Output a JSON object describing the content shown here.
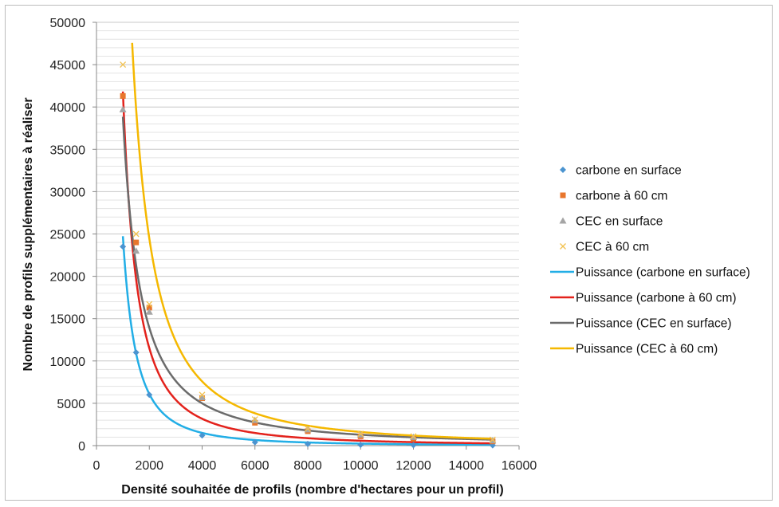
{
  "chart_data": {
    "type": "scatter",
    "title": "",
    "xlabel": "Densité souhaitée de profils (nombre d'hectares pour un profil)",
    "ylabel": "Nombre de profils supplémentaires à réaliser",
    "xlim": [
      0,
      16000
    ],
    "ylim": [
      0,
      50000
    ],
    "x_ticks": [
      "0",
      "2000",
      "4000",
      "6000",
      "8000",
      "10000",
      "12000",
      "14000",
      "16000"
    ],
    "y_ticks": [
      "0",
      "5000",
      "10000",
      "15000",
      "20000",
      "25000",
      "30000",
      "35000",
      "40000",
      "45000",
      "50000"
    ],
    "grid": "horizontal major and minor",
    "legend_position": "right",
    "series": [
      {
        "name": "carbone en surface",
        "marker": "diamond",
        "color": "#4b94d0",
        "x": [
          1000,
          1500,
          2000,
          4000,
          6000,
          8000,
          10000,
          12000,
          15000
        ],
        "y": [
          23500,
          11000,
          6000,
          1200,
          400,
          200,
          100,
          60,
          40
        ]
      },
      {
        "name": "carbone à 60 cm",
        "marker": "square",
        "color": "#e8762c",
        "x": [
          1000,
          1500,
          2000,
          4000,
          6000,
          8000,
          10000,
          12000,
          15000
        ],
        "y": [
          41300,
          24000,
          16300,
          5600,
          2700,
          1700,
          1100,
          800,
          500
        ]
      },
      {
        "name": "CEC en surface",
        "marker": "triangle",
        "color": "#a5a5a5",
        "x": [
          1000,
          1500,
          2000,
          4000,
          6000,
          8000,
          10000,
          12000,
          15000
        ],
        "y": [
          39700,
          23000,
          15800,
          5700,
          3000,
          1900,
          1300,
          1000,
          600
        ]
      },
      {
        "name": "CEC à 60 cm",
        "marker": "x",
        "color": "#f2c14e",
        "x": [
          1000,
          1500,
          2000,
          4000,
          6000,
          8000,
          10000,
          12000,
          15000
        ],
        "y": [
          45000,
          25000,
          16700,
          6000,
          3100,
          2000,
          1400,
          1100,
          700
        ]
      },
      {
        "name": "Puissance (carbone en surface)",
        "type": "power-trendline",
        "color": "#22aee6",
        "coef": 28400000000.0,
        "exp": -2.02,
        "x_range": [
          1000,
          15000
        ]
      },
      {
        "name": "Puissance (carbone à 60 cm)",
        "type": "power-trendline",
        "color": "#e3221c",
        "coef": 15900000000.0,
        "exp": -1.86,
        "x_range": [
          1000,
          15000
        ]
      },
      {
        "name": "Puissance (CEC en surface)",
        "type": "power-trendline",
        "color": "#6b6b6b",
        "coef": 1070000000.0,
        "exp": -1.48,
        "x_range": [
          1000,
          15000
        ]
      },
      {
        "name": "Puissance (CEC à 60 cm)",
        "type": "power-trendline",
        "color": "#f5b800",
        "coef": 9280000000.0,
        "exp": -1.69,
        "x_range": [
          1000,
          15000
        ]
      }
    ]
  }
}
